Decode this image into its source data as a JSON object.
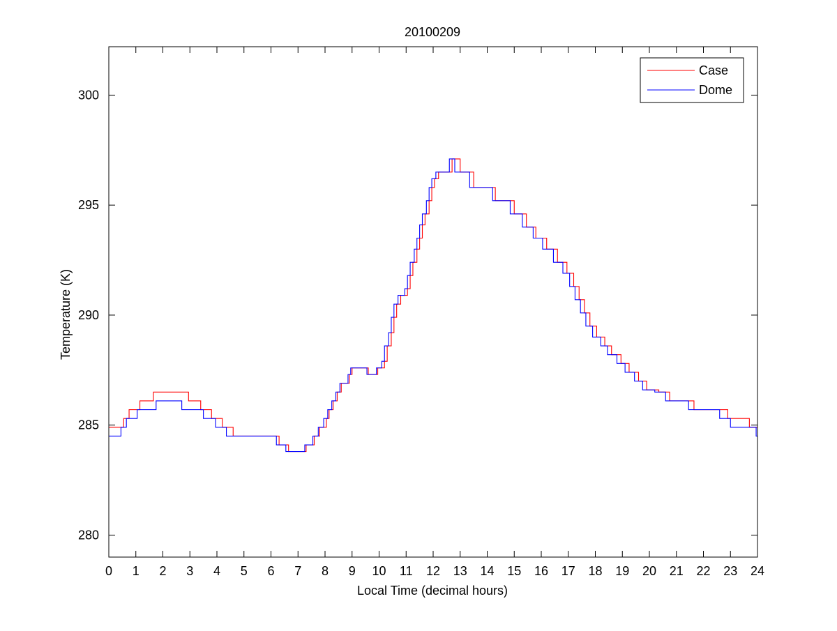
{
  "chart_data": {
    "type": "line",
    "title": "20100209",
    "xlabel": "Local Time (decimal hours)",
    "ylabel": "Temperature (K)",
    "xlim": [
      0,
      24
    ],
    "ylim": [
      279,
      302.2
    ],
    "xticks": [
      0,
      1,
      2,
      3,
      4,
      5,
      6,
      7,
      8,
      9,
      10,
      11,
      12,
      13,
      14,
      15,
      16,
      17,
      18,
      19,
      20,
      21,
      22,
      23,
      24
    ],
    "yticks": [
      280,
      285,
      290,
      295,
      300
    ],
    "grid": false,
    "legend_position": "top-right",
    "series": [
      {
        "name": "Case",
        "color": "#ff0000",
        "step_points": [
          [
            0,
            284.9
          ],
          [
            0.55,
            285.3
          ],
          [
            0.75,
            285.7
          ],
          [
            1.15,
            286.1
          ],
          [
            1.65,
            286.5
          ],
          [
            2.95,
            286.1
          ],
          [
            3.4,
            285.7
          ],
          [
            3.8,
            285.3
          ],
          [
            4.2,
            284.9
          ],
          [
            4.6,
            284.5
          ],
          [
            6.3,
            284.1
          ],
          [
            6.65,
            283.8
          ],
          [
            7.3,
            284.1
          ],
          [
            7.6,
            284.5
          ],
          [
            7.8,
            284.9
          ],
          [
            8.05,
            285.3
          ],
          [
            8.15,
            285.7
          ],
          [
            8.3,
            286.1
          ],
          [
            8.45,
            286.5
          ],
          [
            8.6,
            286.9
          ],
          [
            8.9,
            287.3
          ],
          [
            9.0,
            287.6
          ],
          [
            9.6,
            287.3
          ],
          [
            9.95,
            287.6
          ],
          [
            10.2,
            287.9
          ],
          [
            10.3,
            288.6
          ],
          [
            10.45,
            289.2
          ],
          [
            10.55,
            289.9
          ],
          [
            10.65,
            290.5
          ],
          [
            10.8,
            290.9
          ],
          [
            11.05,
            291.2
          ],
          [
            11.15,
            291.8
          ],
          [
            11.25,
            292.4
          ],
          [
            11.4,
            293.0
          ],
          [
            11.5,
            293.5
          ],
          [
            11.6,
            294.1
          ],
          [
            11.7,
            294.6
          ],
          [
            11.85,
            295.2
          ],
          [
            11.95,
            295.8
          ],
          [
            12.05,
            296.2
          ],
          [
            12.2,
            296.5
          ],
          [
            12.7,
            297.1
          ],
          [
            13.0,
            296.5
          ],
          [
            13.5,
            295.8
          ],
          [
            14.3,
            295.2
          ],
          [
            15.0,
            294.6
          ],
          [
            15.45,
            294.0
          ],
          [
            15.8,
            293.5
          ],
          [
            16.2,
            293.0
          ],
          [
            16.6,
            292.4
          ],
          [
            16.95,
            291.9
          ],
          [
            17.2,
            291.3
          ],
          [
            17.4,
            290.7
          ],
          [
            17.6,
            290.1
          ],
          [
            17.8,
            289.5
          ],
          [
            18.05,
            289.0
          ],
          [
            18.35,
            288.6
          ],
          [
            18.6,
            288.2
          ],
          [
            18.95,
            287.8
          ],
          [
            19.25,
            287.4
          ],
          [
            19.6,
            287.0
          ],
          [
            19.9,
            286.6
          ],
          [
            20.35,
            286.5
          ],
          [
            20.75,
            286.1
          ],
          [
            21.65,
            285.7
          ],
          [
            22.9,
            285.3
          ],
          [
            23.7,
            284.9
          ],
          [
            24,
            284.9
          ]
        ]
      },
      {
        "name": "Dome",
        "color": "#0000ff",
        "step_points": [
          [
            0,
            284.5
          ],
          [
            0.45,
            284.9
          ],
          [
            0.65,
            285.3
          ],
          [
            1.05,
            285.7
          ],
          [
            1.75,
            286.1
          ],
          [
            2.7,
            285.7
          ],
          [
            3.5,
            285.3
          ],
          [
            3.95,
            284.9
          ],
          [
            4.35,
            284.5
          ],
          [
            6.2,
            284.1
          ],
          [
            6.55,
            283.8
          ],
          [
            7.25,
            284.1
          ],
          [
            7.55,
            284.5
          ],
          [
            7.75,
            284.9
          ],
          [
            7.95,
            285.3
          ],
          [
            8.1,
            285.7
          ],
          [
            8.25,
            286.1
          ],
          [
            8.4,
            286.5
          ],
          [
            8.55,
            286.9
          ],
          [
            8.85,
            287.3
          ],
          [
            8.95,
            287.6
          ],
          [
            9.55,
            287.3
          ],
          [
            9.9,
            287.6
          ],
          [
            10.1,
            287.9
          ],
          [
            10.2,
            288.6
          ],
          [
            10.35,
            289.2
          ],
          [
            10.45,
            289.9
          ],
          [
            10.55,
            290.5
          ],
          [
            10.7,
            290.9
          ],
          [
            10.95,
            291.2
          ],
          [
            11.05,
            291.8
          ],
          [
            11.15,
            292.4
          ],
          [
            11.3,
            293.0
          ],
          [
            11.4,
            293.5
          ],
          [
            11.5,
            294.1
          ],
          [
            11.6,
            294.6
          ],
          [
            11.75,
            295.2
          ],
          [
            11.85,
            295.8
          ],
          [
            11.95,
            296.2
          ],
          [
            12.1,
            296.5
          ],
          [
            12.6,
            297.1
          ],
          [
            12.8,
            296.5
          ],
          [
            13.35,
            295.8
          ],
          [
            14.2,
            295.2
          ],
          [
            14.85,
            294.6
          ],
          [
            15.3,
            294.0
          ],
          [
            15.7,
            293.5
          ],
          [
            16.05,
            293.0
          ],
          [
            16.45,
            292.4
          ],
          [
            16.8,
            291.9
          ],
          [
            17.05,
            291.3
          ],
          [
            17.25,
            290.7
          ],
          [
            17.45,
            290.1
          ],
          [
            17.65,
            289.5
          ],
          [
            17.9,
            289.0
          ],
          [
            18.2,
            288.6
          ],
          [
            18.45,
            288.2
          ],
          [
            18.8,
            287.8
          ],
          [
            19.1,
            287.4
          ],
          [
            19.45,
            287.0
          ],
          [
            19.75,
            286.6
          ],
          [
            20.2,
            286.5
          ],
          [
            20.6,
            286.1
          ],
          [
            21.45,
            285.7
          ],
          [
            22.6,
            285.3
          ],
          [
            23.0,
            284.9
          ],
          [
            23.95,
            284.5
          ],
          [
            24,
            284.5
          ]
        ]
      }
    ]
  }
}
